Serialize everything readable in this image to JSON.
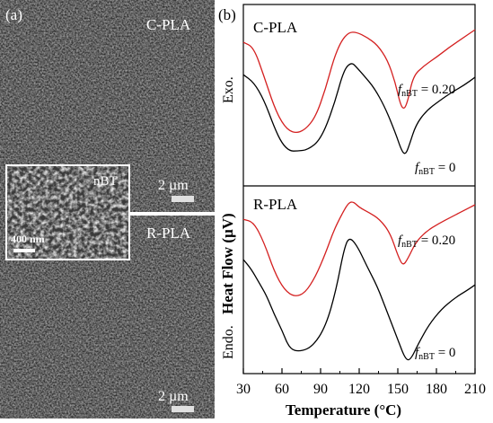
{
  "panel_a": {
    "label": "(a)",
    "top_label": "C-PLA",
    "bottom_label": "R-PLA",
    "scale_bar_top": "2 µm",
    "scale_bar_bottom": "2 µm",
    "inset_label": "nBT",
    "inset_scale": "400 nm"
  },
  "chart_data": {
    "type": "line",
    "panel_label": "(b)",
    "xlabel": "Temperature (°C)",
    "ylabel": "Heat Flow (µV)",
    "exo_label": "Exo.",
    "endo_label": "Endo.",
    "xlim": [
      30,
      210
    ],
    "x_ticks": [
      30,
      60,
      90,
      120,
      150,
      180,
      210
    ],
    "subplots": [
      {
        "name": "C-PLA",
        "series": [
          {
            "name": "f_nBT = 0.20",
            "label_main": "f",
            "label_sub": "nBT",
            "label_value": " = 0.20",
            "color": "#d42020",
            "x": [
              30,
              38,
              46,
              54,
              62,
              70,
              78,
              86,
              94,
              100,
              106,
              112,
              118,
              126,
              134,
              142,
              148,
              152,
              155,
              158,
              162,
              170,
              180,
              190,
              200,
              210
            ],
            "y": [
              0.82,
              0.78,
              0.55,
              0.3,
              0.14,
              0.09,
              0.12,
              0.22,
              0.45,
              0.68,
              0.83,
              0.9,
              0.9,
              0.86,
              0.8,
              0.68,
              0.5,
              0.32,
              0.28,
              0.36,
              0.55,
              0.63,
              0.7,
              0.78,
              0.85,
              0.92
            ]
          },
          {
            "name": "f_nBT = 0",
            "label_main": "f",
            "label_sub": "nBT",
            "label_value": " = 0",
            "color": "#000000",
            "x": [
              30,
              38,
              46,
              54,
              60,
              66,
              72,
              80,
              90,
              100,
              108,
              114,
              118,
              124,
              132,
              140,
              148,
              153,
              156,
              159,
              164,
              172,
              182,
              192,
              202,
              210
            ],
            "y": [
              0.56,
              0.5,
              0.36,
              0.14,
              0.01,
              -0.05,
              -0.05,
              -0.04,
              0.04,
              0.3,
              0.6,
              0.66,
              0.62,
              0.55,
              0.45,
              0.3,
              0.1,
              -0.05,
              -0.08,
              0.0,
              0.16,
              0.27,
              0.35,
              0.42,
              0.48,
              0.54
            ]
          }
        ]
      },
      {
        "name": "R-PLA",
        "series": [
          {
            "name": "f_nBT = 0.20",
            "label_main": "f",
            "label_sub": "nBT",
            "label_value": " = 0.20",
            "color": "#d42020",
            "x": [
              30,
              38,
              46,
              54,
              62,
              70,
              78,
              86,
              94,
              100,
              106,
              112,
              116,
              120,
              128,
              136,
              144,
              150,
              154,
              158,
              164,
              172,
              182,
              192,
              202,
              210
            ],
            "y": [
              0.85,
              0.83,
              0.68,
              0.46,
              0.32,
              0.27,
              0.3,
              0.42,
              0.6,
              0.76,
              0.88,
              0.98,
              0.98,
              0.94,
              0.9,
              0.85,
              0.75,
              0.58,
              0.5,
              0.56,
              0.68,
              0.76,
              0.82,
              0.87,
              0.92,
              0.96
            ]
          },
          {
            "name": "f_nBT = 0",
            "label_main": "f",
            "label_sub": "nBT",
            "label_value": " = 0",
            "color": "#000000",
            "x": [
              30,
              36,
              42,
              48,
              54,
              60,
              66,
              74,
              84,
              94,
              102,
              108,
              112,
              118,
              126,
              134,
              142,
              150,
              156,
              160,
              166,
              174,
              184,
              194,
              204,
              210
            ],
            "y": [
              0.55,
              0.48,
              0.38,
              0.28,
              0.14,
              0.02,
              -0.12,
              -0.14,
              -0.1,
              0.05,
              0.32,
              0.62,
              0.72,
              0.66,
              0.5,
              0.35,
              0.15,
              -0.05,
              -0.2,
              -0.2,
              -0.08,
              0.06,
              0.18,
              0.26,
              0.32,
              0.36
            ]
          }
        ]
      }
    ]
  }
}
